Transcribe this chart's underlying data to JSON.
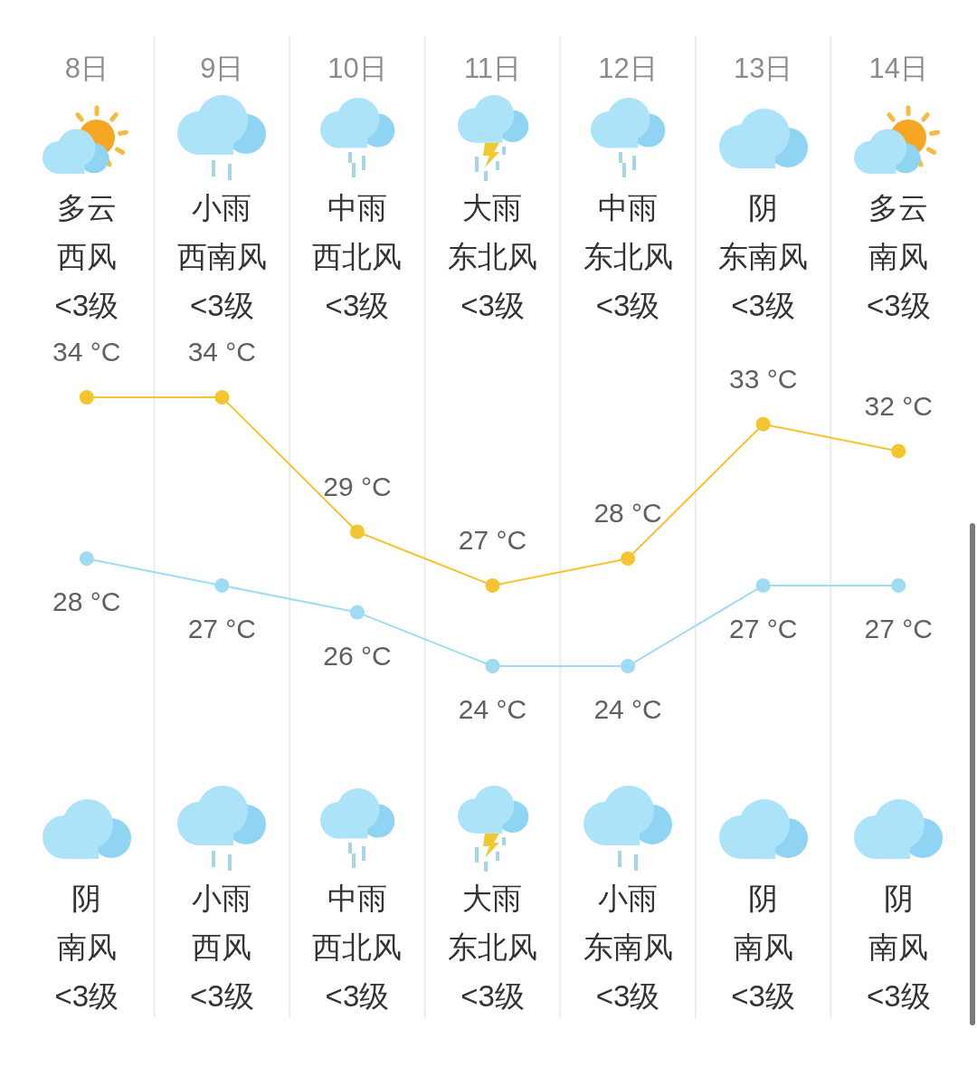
{
  "chart_data": {
    "type": "line",
    "categories": [
      "8日",
      "9日",
      "10日",
      "11日",
      "12日",
      "13日",
      "14日"
    ],
    "series": [
      {
        "color": "#f5c431",
        "values": [
          34,
          34,
          29,
          27,
          28,
          33,
          32
        ],
        "value_labels": [
          "34 °C",
          "34 °C",
          "29 °C",
          "27 °C",
          "28 °C",
          "33 °C",
          "32 °C"
        ]
      },
      {
        "color": "#9fdcf3",
        "values": [
          28,
          27,
          26,
          24,
          24,
          27,
          27
        ],
        "value_labels": [
          "28 °C",
          "27 °C",
          "26 °C",
          "24 °C",
          "24 °C",
          "27 °C",
          "27 °C"
        ]
      }
    ],
    "annotations": [
      "多云",
      "小雨",
      "中雨",
      "大雨",
      "中雨",
      "阴",
      "多云",
      "西风",
      "西南风",
      "西北风",
      "东北风",
      "东北风",
      "东南风",
      "南风",
      "<3级",
      "<3级",
      "<3级",
      "<3级",
      "<3级",
      "<3级",
      "<3级",
      "阴",
      "小雨",
      "中雨",
      "大雨",
      "小雨",
      "阴",
      "阴",
      "南风",
      "西风",
      "西北风",
      "东北风",
      "东南风",
      "南风",
      "南风",
      "<3级",
      "<3级",
      "<3级",
      "<3级",
      "<3级",
      "<3级",
      "<3级"
    ],
    "grid": "x",
    "legend": false,
    "tick_labels": "x",
    "marker": "circle",
    "line_style": "solid"
  }
}
